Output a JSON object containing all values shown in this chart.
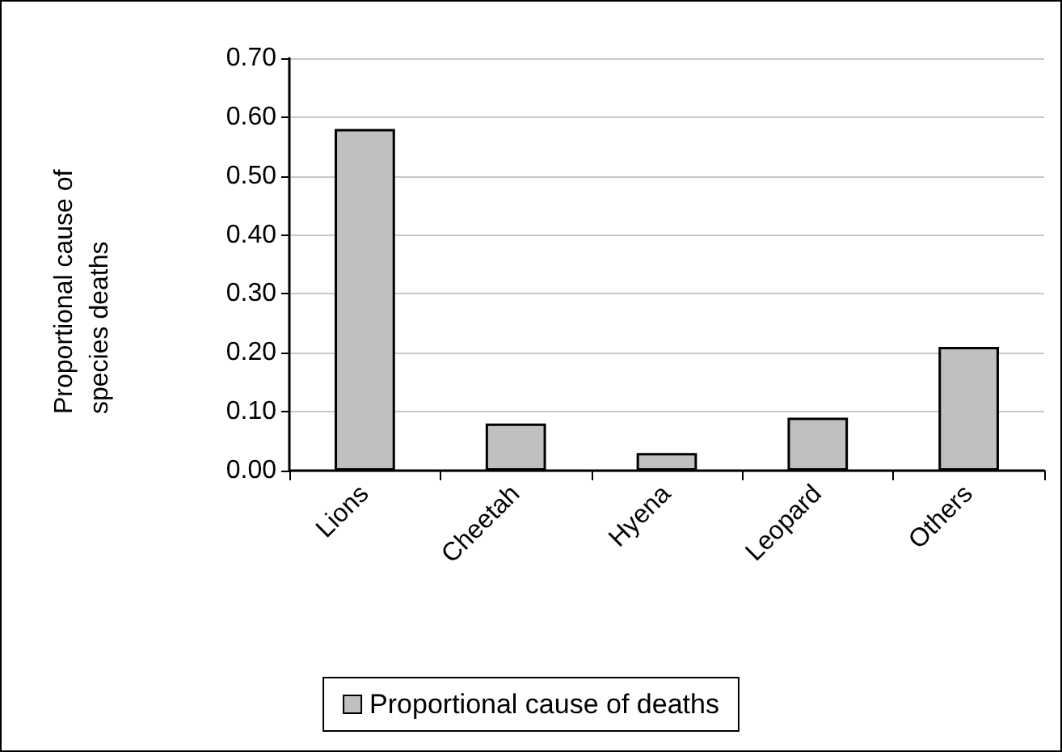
{
  "chart_data": {
    "type": "bar",
    "ylabel": "Proportional cause of species deaths",
    "categories": [
      "Lions",
      "Cheetah",
      "Hyena",
      "Leopard",
      "Others"
    ],
    "series": [
      {
        "name": "Proportional cause of deaths",
        "color": "#c0c0c0",
        "values": [
          0.58,
          0.08,
          0.03,
          0.09,
          0.21
        ]
      }
    ],
    "ylim": [
      0,
      0.7
    ],
    "yticks": [
      {
        "value": 0,
        "label": "0.00"
      },
      {
        "value": 0.1,
        "label": "0.10"
      },
      {
        "value": 0.2,
        "label": "0.20"
      },
      {
        "value": 0.3,
        "label": "0.30"
      },
      {
        "value": 0.4,
        "label": "0.40"
      },
      {
        "value": 0.5,
        "label": "0.50"
      },
      {
        "value": 0.6,
        "label": "0.60"
      },
      {
        "value": 0.7,
        "label": "0.70"
      }
    ],
    "grid": "y",
    "legend": "bottom"
  }
}
